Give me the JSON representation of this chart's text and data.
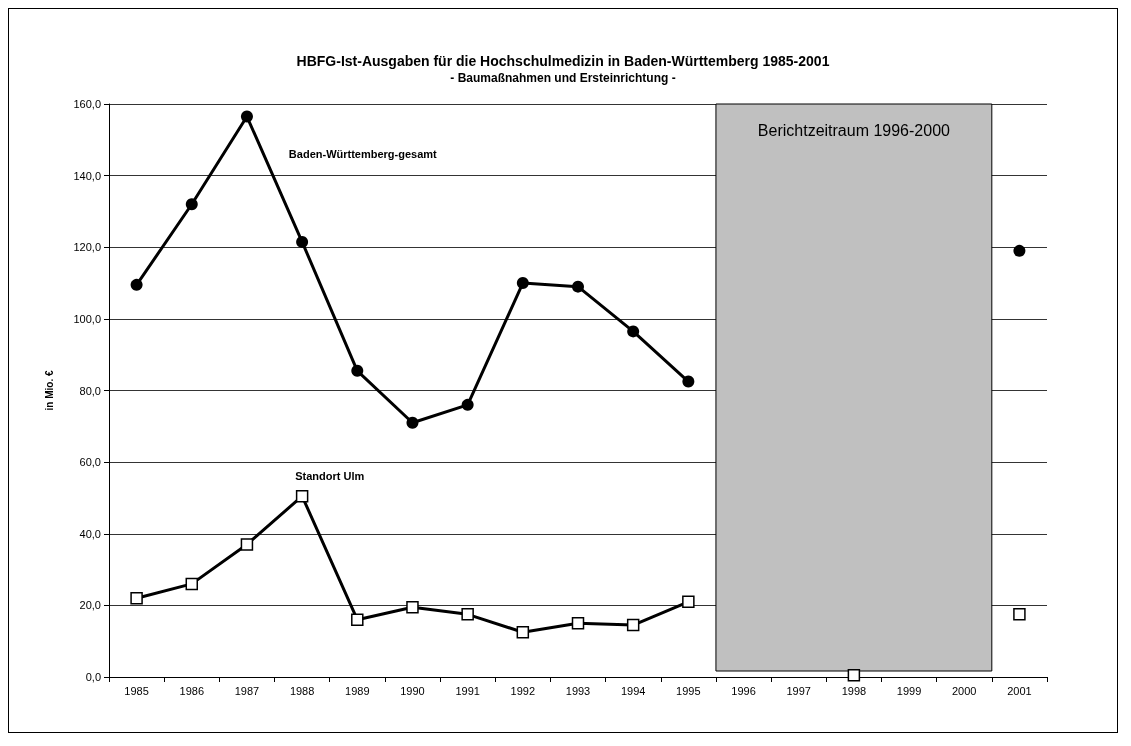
{
  "chart_data": {
    "type": "line",
    "title": "HBFG-Ist-Ausgaben für die Hochschulmedizin in Baden-Württemberg 1985-2001",
    "subtitle": "- Baumaßnahmen und Ersteinrichtung -",
    "ylabel": "in Mio. €",
    "categories": [
      "1985",
      "1986",
      "1987",
      "1988",
      "1989",
      "1990",
      "1991",
      "1992",
      "1993",
      "1994",
      "1995",
      "1996",
      "1997",
      "1998",
      "1999",
      "2000",
      "2001"
    ],
    "series": [
      {
        "name": "Baden-Württemberg-gesamt",
        "color": "#000000",
        "marker": "circle",
        "values": [
          109.5,
          132,
          156.5,
          121.5,
          85.5,
          71,
          76,
          110,
          109,
          96.5,
          82.5,
          null,
          null,
          null,
          null,
          null,
          119
        ]
      },
      {
        "name": "Standort Ulm",
        "color": "#000000",
        "marker": "square",
        "values": [
          22,
          26,
          37,
          50.5,
          16,
          19.5,
          17.5,
          12.5,
          15,
          14.5,
          21,
          null,
          null,
          0.5,
          null,
          null,
          17.5
        ]
      }
    ],
    "ylim": [
      0,
      160
    ],
    "yticks": [
      {
        "value": 0,
        "label": "0,0"
      },
      {
        "value": 20,
        "label": "20,0"
      },
      {
        "value": 40,
        "label": "40,0"
      },
      {
        "value": 60,
        "label": "60,0"
      },
      {
        "value": 80,
        "label": "80,0"
      },
      {
        "value": 100,
        "label": "100,0"
      },
      {
        "value": 120,
        "label": "120,0"
      },
      {
        "value": 140,
        "label": "140,0"
      },
      {
        "value": 160,
        "label": "160,0"
      }
    ],
    "grid": "y",
    "line_style": "solid",
    "bands": [
      {
        "axis": "x",
        "from": "1996",
        "to": "2000",
        "label": "Berichtzeitraum 1996-2000",
        "color": "#c0c0c0"
      }
    ]
  }
}
